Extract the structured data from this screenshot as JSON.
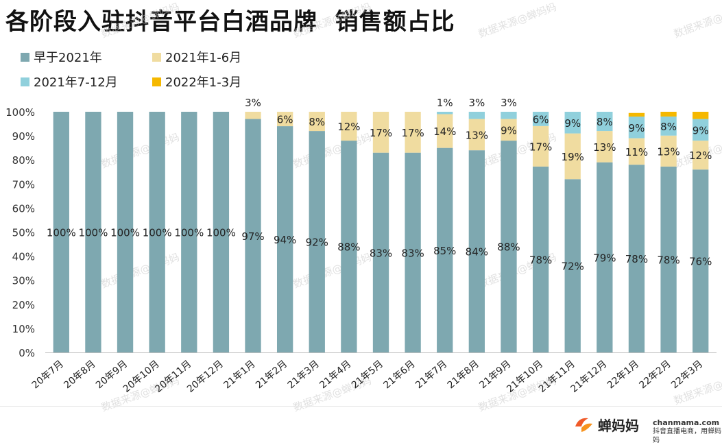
{
  "title": "各阶段入驻抖音平台白酒品牌  销售额占比",
  "watermark_text": "数据来源@蝉妈妈",
  "brand": {
    "name": "蝉妈妈",
    "domain": "chanmama.com",
    "tagline": "抖音直播电商，用蝉妈妈"
  },
  "chart_data": {
    "type": "bar",
    "stacked": true,
    "orientation": "vertical",
    "normalized": true,
    "title": "各阶段入驻抖音平台白酒品牌  销售额占比",
    "xlabel": "",
    "ylabel": "",
    "ylim": [
      0,
      100
    ],
    "y_ticks": [
      "0%",
      "10%",
      "20%",
      "30%",
      "40%",
      "50%",
      "60%",
      "70%",
      "80%",
      "90%",
      "100%"
    ],
    "grid": false,
    "legend_position": "top-left",
    "categories": [
      "20年7月",
      "20年8月",
      "20年9月",
      "20年10月",
      "20年11月",
      "20年12月",
      "21年1月",
      "21年2月",
      "21年3月",
      "21年4月",
      "21年5月",
      "21年6月",
      "21年7月",
      "21年8月",
      "21年9月",
      "21年10月",
      "21年11月",
      "21年12月",
      "22年1月",
      "22年2月",
      "22年3月"
    ],
    "series": [
      {
        "name": "早于2021年",
        "color": "#7ea8b0",
        "values": [
          100,
          100,
          100,
          100,
          100,
          100,
          97,
          94,
          92,
          88,
          83,
          83,
          85,
          84,
          88,
          78,
          72,
          79,
          78,
          78,
          76
        ],
        "labels": [
          "100%",
          "100%",
          "100%",
          "100%",
          "100%",
          "100%",
          "97%",
          "94%",
          "92%",
          "88%",
          "83%",
          "83%",
          "85%",
          "84%",
          "88%",
          "78%",
          "72%",
          "79%",
          "78%",
          "78%",
          "76%"
        ]
      },
      {
        "name": "2021年1-6月",
        "color": "#f0dca0",
        "values": [
          0,
          0,
          0,
          0,
          0,
          0,
          3,
          6,
          8,
          12,
          17,
          17,
          14,
          13,
          9,
          17,
          19,
          13,
          11,
          13,
          12
        ],
        "labels": [
          "",
          "",
          "",
          "",
          "",
          "",
          "3%",
          "6%",
          "8%",
          "12%",
          "17%",
          "17%",
          "14%",
          "13%",
          "9%",
          "17%",
          "19%",
          "13%",
          "11%",
          "13%",
          "12%"
        ]
      },
      {
        "name": "2021年7-12月",
        "color": "#90d0dc",
        "values": [
          0,
          0,
          0,
          0,
          0,
          0,
          0,
          0,
          0,
          0,
          0,
          0,
          1,
          3,
          3,
          6,
          9,
          8,
          9,
          8,
          9
        ],
        "labels": [
          "",
          "",
          "",
          "",
          "",
          "",
          "",
          "",
          "",
          "",
          "",
          "",
          "1%",
          "3%",
          "3%",
          "6%",
          "9%",
          "8%",
          "9%",
          "8%",
          "9%"
        ]
      },
      {
        "name": "2022年1-3月",
        "color": "#f5b800",
        "values": [
          0,
          0,
          0,
          0,
          0,
          0,
          0,
          0,
          0,
          0,
          0,
          0,
          0,
          0,
          0,
          0,
          0,
          0,
          1.5,
          2,
          3
        ],
        "labels": [
          "",
          "",
          "",
          "",
          "",
          "",
          "",
          "",
          "",
          "",
          "",
          "",
          "",
          "",
          "",
          "",
          "",
          "",
          "",
          "",
          ""
        ]
      }
    ]
  }
}
